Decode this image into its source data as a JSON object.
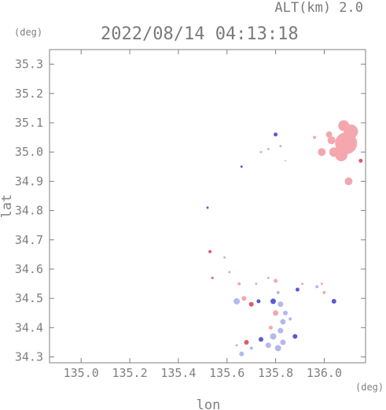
{
  "header": {
    "altitude_label": "ALT(km) 2.0",
    "timestamp": "2022/08/14 04:13:18"
  },
  "chart_data": {
    "type": "scatter",
    "title": "2022/08/14 04:13:18",
    "xlabel": "lon",
    "ylabel": "lat",
    "x_unit": "(deg)",
    "y_unit": "(deg)",
    "xlim": [
      134.87,
      136.17
    ],
    "ylim": [
      34.28,
      35.35
    ],
    "x_ticks": [
      135.0,
      135.2,
      135.4,
      135.6,
      135.8,
      136.0
    ],
    "x_tick_labels": [
      "135.0",
      "135.2",
      "135.4",
      "135.6",
      "135.8",
      "136.0"
    ],
    "y_ticks": [
      34.3,
      34.4,
      34.5,
      34.6,
      34.7,
      34.8,
      34.9,
      35.0,
      35.1,
      35.2,
      35.3
    ],
    "y_tick_labels": [
      "34.3",
      "34.4",
      "34.5",
      "34.6",
      "34.7",
      "34.8",
      "34.9",
      "35.0",
      "35.1",
      "35.2",
      "35.3"
    ],
    "grid": false,
    "colors": {
      "positive": "#f4a8ae",
      "positive_strong": "#e05a68",
      "negative": "#b4b8ee",
      "negative_strong": "#5a5ad8",
      "axis": "#808080"
    },
    "echoes": [
      {
        "lon": 136.09,
        "lat": 35.03,
        "size": 14,
        "color": "positive"
      },
      {
        "lon": 136.11,
        "lat": 35.07,
        "size": 9,
        "color": "positive"
      },
      {
        "lon": 136.08,
        "lat": 35.09,
        "size": 7,
        "color": "positive"
      },
      {
        "lon": 136.07,
        "lat": 34.99,
        "size": 8,
        "color": "positive"
      },
      {
        "lon": 136.03,
        "lat": 35.04,
        "size": 5,
        "color": "positive"
      },
      {
        "lon": 136.04,
        "lat": 35.0,
        "size": 6,
        "color": "positive"
      },
      {
        "lon": 136.02,
        "lat": 35.06,
        "size": 4,
        "color": "positive"
      },
      {
        "lon": 135.99,
        "lat": 35.0,
        "size": 5,
        "color": "positive"
      },
      {
        "lon": 136.1,
        "lat": 34.9,
        "size": 5,
        "color": "positive"
      },
      {
        "lon": 136.15,
        "lat": 34.97,
        "size": 2.5,
        "color": "positive_strong"
      },
      {
        "lon": 135.96,
        "lat": 35.05,
        "size": 2,
        "color": "positive"
      },
      {
        "lon": 135.8,
        "lat": 35.06,
        "size": 2.5,
        "color": "negative_strong"
      },
      {
        "lon": 135.82,
        "lat": 35.02,
        "size": 1.5,
        "color": "negative"
      },
      {
        "lon": 135.77,
        "lat": 35.01,
        "size": 1.5,
        "color": "positive"
      },
      {
        "lon": 135.74,
        "lat": 35.0,
        "size": 1.5,
        "color": "negative"
      },
      {
        "lon": 135.66,
        "lat": 34.95,
        "size": 1.5,
        "color": "negative_strong"
      },
      {
        "lon": 135.84,
        "lat": 34.97,
        "size": 1,
        "color": "negative"
      },
      {
        "lon": 135.52,
        "lat": 34.81,
        "size": 1.5,
        "color": "negative_strong"
      },
      {
        "lon": 135.53,
        "lat": 34.66,
        "size": 2,
        "color": "positive_strong"
      },
      {
        "lon": 135.54,
        "lat": 34.57,
        "size": 1.5,
        "color": "positive_strong"
      },
      {
        "lon": 135.59,
        "lat": 34.64,
        "size": 1.5,
        "color": "negative"
      },
      {
        "lon": 135.61,
        "lat": 34.59,
        "size": 1.5,
        "color": "negative"
      },
      {
        "lon": 135.65,
        "lat": 34.55,
        "size": 2,
        "color": "positive"
      },
      {
        "lon": 135.64,
        "lat": 34.49,
        "size": 4,
        "color": "negative"
      },
      {
        "lon": 135.67,
        "lat": 34.5,
        "size": 3,
        "color": "positive"
      },
      {
        "lon": 135.7,
        "lat": 34.48,
        "size": 3,
        "color": "positive_strong"
      },
      {
        "lon": 135.73,
        "lat": 34.49,
        "size": 2.5,
        "color": "negative_strong"
      },
      {
        "lon": 135.72,
        "lat": 34.55,
        "size": 1.5,
        "color": "negative"
      },
      {
        "lon": 135.77,
        "lat": 34.57,
        "size": 1.5,
        "color": "negative"
      },
      {
        "lon": 135.8,
        "lat": 34.56,
        "size": 2.5,
        "color": "positive"
      },
      {
        "lon": 135.81,
        "lat": 34.52,
        "size": 2,
        "color": "negative"
      },
      {
        "lon": 135.79,
        "lat": 34.49,
        "size": 3.5,
        "color": "negative_strong"
      },
      {
        "lon": 135.82,
        "lat": 34.48,
        "size": 3.5,
        "color": "negative"
      },
      {
        "lon": 135.84,
        "lat": 34.45,
        "size": 3,
        "color": "negative"
      },
      {
        "lon": 135.8,
        "lat": 34.45,
        "size": 3.5,
        "color": "positive"
      },
      {
        "lon": 135.83,
        "lat": 34.42,
        "size": 3.5,
        "color": "negative"
      },
      {
        "lon": 135.82,
        "lat": 34.39,
        "size": 3.5,
        "color": "negative"
      },
      {
        "lon": 135.79,
        "lat": 34.37,
        "size": 4,
        "color": "negative"
      },
      {
        "lon": 135.83,
        "lat": 34.35,
        "size": 3.5,
        "color": "negative"
      },
      {
        "lon": 135.81,
        "lat": 34.33,
        "size": 4,
        "color": "negative"
      },
      {
        "lon": 135.77,
        "lat": 34.34,
        "size": 3.5,
        "color": "negative"
      },
      {
        "lon": 135.78,
        "lat": 34.4,
        "size": 2.5,
        "color": "positive"
      },
      {
        "lon": 135.74,
        "lat": 34.36,
        "size": 3,
        "color": "negative_strong"
      },
      {
        "lon": 135.68,
        "lat": 34.35,
        "size": 3,
        "color": "positive_strong"
      },
      {
        "lon": 135.7,
        "lat": 34.33,
        "size": 2,
        "color": "negative"
      },
      {
        "lon": 135.66,
        "lat": 34.31,
        "size": 3,
        "color": "negative"
      },
      {
        "lon": 135.64,
        "lat": 34.34,
        "size": 1.5,
        "color": "negative"
      },
      {
        "lon": 135.88,
        "lat": 34.37,
        "size": 3,
        "color": "negative_strong"
      },
      {
        "lon": 135.86,
        "lat": 34.43,
        "size": 2,
        "color": "negative"
      },
      {
        "lon": 135.89,
        "lat": 34.53,
        "size": 2.5,
        "color": "negative_strong"
      },
      {
        "lon": 135.91,
        "lat": 34.55,
        "size": 1.5,
        "color": "positive"
      },
      {
        "lon": 135.97,
        "lat": 34.54,
        "size": 2,
        "color": "negative"
      },
      {
        "lon": 135.99,
        "lat": 34.55,
        "size": 1.5,
        "color": "positive"
      },
      {
        "lon": 136.0,
        "lat": 34.52,
        "size": 2,
        "color": "positive"
      },
      {
        "lon": 136.04,
        "lat": 34.49,
        "size": 3,
        "color": "negative_strong"
      }
    ]
  }
}
